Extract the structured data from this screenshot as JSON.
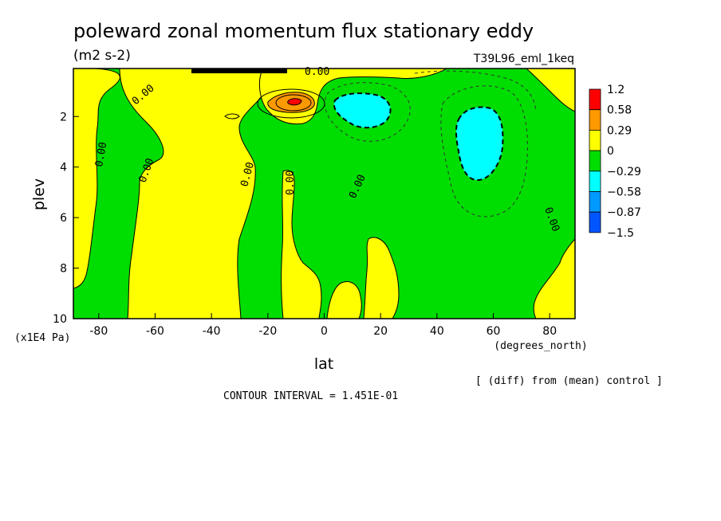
{
  "chart_data": {
    "type": "heatmap",
    "title": "poleward zonal momentum flux stationary eddy",
    "units": "(m2 s-2)",
    "run_label": "T39L96_eml_1keq",
    "xlabel": "lat",
    "x_units": "(degrees_north)",
    "ylabel": "plev",
    "y_units": "(x1E4 Pa)",
    "x_ticks": [
      "-80",
      "-60",
      "-40",
      "-20",
      "0",
      "20",
      "40",
      "60",
      "80"
    ],
    "x_tick_values": [
      -80,
      -60,
      -40,
      -20,
      0,
      20,
      40,
      60,
      80
    ],
    "y_ticks": [
      "2",
      "4",
      "6",
      "8",
      "10"
    ],
    "y_tick_values": [
      2,
      4,
      6,
      8,
      10
    ],
    "xlim": [
      -89,
      89
    ],
    "ylim": [
      10,
      0.1
    ],
    "y_inverted": true,
    "legend_levels": [
      "1.2",
      "0.58",
      "0.29",
      "0",
      "−0.29",
      "−0.58",
      "−0.87",
      "−1.5"
    ],
    "legend_colors": [
      "#ff0000",
      "#ff9900",
      "#ffff00",
      "#00dd00",
      "#00ffff",
      "#0099ff",
      "#0055ff"
    ],
    "legend_position": "right",
    "contour_labels": [
      "0.00"
    ],
    "contour_interval_text": "CONTOUR INTERVAL = 1.451E-01",
    "footnote": "[ (diff) from (mean) control ]",
    "regions": [
      {
        "level": "negative",
        "color": "#00dd00",
        "lat": [
          -89,
          89
        ],
        "plev": [
          0.1,
          10
        ]
      },
      {
        "level": "positive",
        "color": "#ffff00",
        "lat": [
          -70,
          -17
        ],
        "plev": [
          0.3,
          10
        ]
      },
      {
        "level": "positive",
        "color": "#ffff00",
        "lat": [
          -3,
          5
        ],
        "plev": [
          4.5,
          10
        ]
      },
      {
        "level": "positive",
        "color": "#ffff00",
        "lat": [
          15,
          25
        ],
        "plev": [
          7.5,
          10
        ]
      },
      {
        "level": "positive",
        "color": "#ffff00",
        "lat": [
          75,
          89
        ],
        "plev": [
          5.5,
          10
        ]
      },
      {
        "level": "positive",
        "color": "#ffff00",
        "lat": [
          -89,
          -70
        ],
        "plev": [
          0.1,
          6
        ]
      },
      {
        "level": "high",
        "color": "#ff9900",
        "lat": [
          -15,
          -5
        ],
        "plev": [
          1.1,
          1.9
        ]
      },
      {
        "level": "max",
        "color": "#ff0000",
        "lat": [
          -10,
          -8
        ],
        "plev": [
          1.4,
          1.6
        ]
      },
      {
        "level": "low",
        "color": "#00ffff",
        "lat": [
          5,
          25
        ],
        "plev": [
          1.0,
          2.2
        ]
      },
      {
        "level": "low",
        "color": "#00ffff",
        "lat": [
          47,
          62
        ],
        "plev": [
          1.7,
          4.6
        ]
      }
    ]
  }
}
